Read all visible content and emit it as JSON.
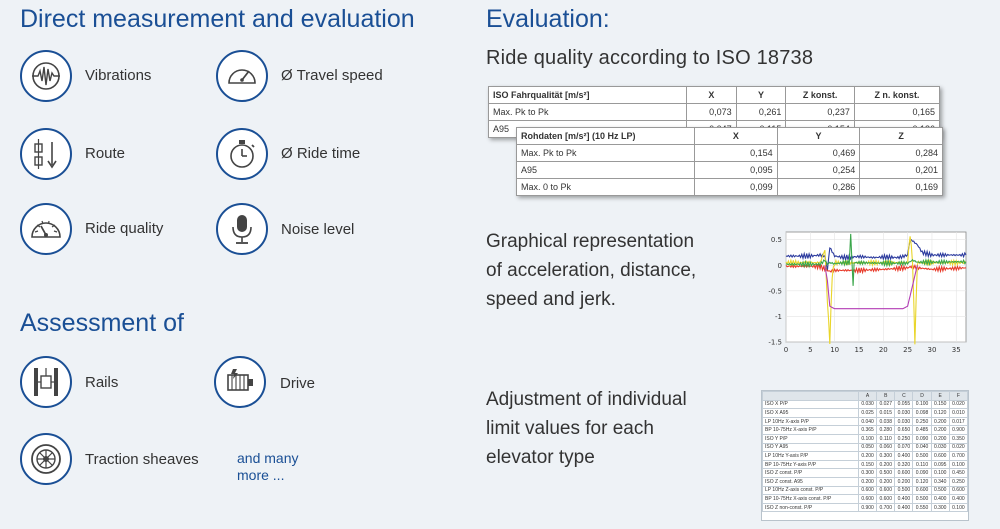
{
  "left": {
    "heading": "Direct measurement and evaluation",
    "measurements": [
      {
        "label": "Vibrations",
        "icon": "vibration-icon"
      },
      {
        "label": "Ø Travel speed",
        "icon": "speedometer-icon"
      },
      {
        "label": "Route",
        "icon": "route-icon"
      },
      {
        "label": "Ø Ride time",
        "icon": "stopwatch-icon"
      },
      {
        "label": "Ride quality",
        "icon": "gauge-icon"
      },
      {
        "label": "Noise level",
        "icon": "microphone-icon"
      }
    ],
    "assessment_heading": "Assessment of",
    "assessments": [
      {
        "label": "Rails",
        "icon": "rails-icon"
      },
      {
        "label": "Drive",
        "icon": "motor-icon"
      },
      {
        "label": "Traction sheaves",
        "icon": "sheave-icon"
      }
    ],
    "more_line1": "and many",
    "more_line2": "more ..."
  },
  "right": {
    "heading": "Evaluation:",
    "ride_quality_title": "Ride quality according to ISO 18738",
    "iso_table": {
      "headers": [
        "ISO Fahrqualität [m/s²]",
        "X",
        "Y",
        "Z konst.",
        "Z n. konst."
      ],
      "rows": [
        [
          "Max. Pk to Pk",
          "0,073",
          "0,261",
          "0,237",
          "0,165"
        ],
        [
          "A95",
          "0,047",
          "0,115",
          "0,154",
          "0,136"
        ]
      ]
    },
    "raw_table": {
      "headers": [
        "Rohdaten [m/s²] (10 Hz LP)",
        "X",
        "Y",
        "Z"
      ],
      "rows": [
        [
          "Max. Pk to Pk",
          "0,154",
          "0,469",
          "0,284"
        ],
        [
          "A95",
          "0,095",
          "0,254",
          "0,201"
        ],
        [
          "Max. 0 to Pk",
          "0,099",
          "0,286",
          "0,169"
        ]
      ]
    },
    "graph_text": [
      "Graphical representation",
      "of acceleration, distance,",
      "speed and jerk."
    ],
    "limits_text": [
      "Adjustment of individual",
      "limit values for each",
      "elevator type"
    ],
    "limits_table": {
      "headers": [
        "",
        "A",
        "B",
        "C",
        "D",
        "E",
        "F"
      ],
      "rows": [
        [
          "ISO X P/P",
          "0.030",
          "0.027",
          "0.055",
          "0.100",
          "0.150",
          "0.020"
        ],
        [
          "ISO X A95",
          "0.025",
          "0.015",
          "0.030",
          "0.098",
          "0.120",
          "0.010"
        ],
        [
          "LP 10Hz X-axis P/P",
          "0.040",
          "0.038",
          "0.030",
          "0.250",
          "0.200",
          "0.017"
        ],
        [
          "BP 10-75Hz X-axis P/P",
          "0.365",
          "0.280",
          "0.650",
          "0.485",
          "0.200",
          "0.900"
        ],
        [
          "ISO Y P/P",
          "0.100",
          "0.110",
          "0.250",
          "0.090",
          "0.200",
          "0.350"
        ],
        [
          "ISO Y A95",
          "0.050",
          "0.060",
          "0.070",
          "0.040",
          "0.030",
          "0.020"
        ],
        [
          "LP 10Hz Y-axis P/P",
          "0.200",
          "0.300",
          "0.400",
          "0.500",
          "0.600",
          "0.700"
        ],
        [
          "BP 10-75Hz Y-axis P/P",
          "0.150",
          "0.200",
          "0.320",
          "0.110",
          "0.095",
          "0.100"
        ],
        [
          "ISO Z const. P/P",
          "0.300",
          "0.500",
          "0.600",
          "0.090",
          "0.100",
          "0.450"
        ],
        [
          "ISO Z const. A95",
          "0.200",
          "0.200",
          "0.200",
          "0.120",
          "0.340",
          "0.250"
        ],
        [
          "LP 10Hz Z-axis const. P/P",
          "0.600",
          "0.600",
          "0.500",
          "0.600",
          "0.500",
          "0.600"
        ],
        [
          "BP 10-75Hz X-axis const. P/P",
          "0.600",
          "0.600",
          "0.400",
          "0.500",
          "0.400",
          "0.400"
        ],
        [
          "ISO Z non-const. P/P",
          "0.900",
          "0.700",
          "0.400",
          "0.550",
          "0.300",
          "0.100"
        ]
      ]
    }
  },
  "chart_data": {
    "type": "line",
    "xlim": [
      0,
      37
    ],
    "ylim": [
      -1.5,
      0.65
    ],
    "x_ticks": [
      0,
      5,
      10,
      15,
      20,
      25,
      30,
      35
    ],
    "y_ticks": [
      0.5,
      0,
      -0.5,
      -1,
      -1.5
    ],
    "x_tick_labels": [
      "0",
      "5",
      "10",
      "15",
      "20",
      "25",
      "30",
      "35"
    ],
    "y_tick_labels": [
      "0.5",
      "0",
      "-0.5",
      "-1",
      "-1.5"
    ],
    "grid": true,
    "series": [
      {
        "color": "#2b3a9e",
        "x": [
          0,
          5,
          7,
          8,
          8.5,
          9,
          10,
          12,
          15,
          18,
          20,
          23,
          24,
          25,
          25.5,
          26,
          27,
          28,
          30,
          33,
          37
        ],
        "y": [
          0.18,
          0.18,
          0.2,
          0.18,
          -0.1,
          0.35,
          0.18,
          0.15,
          0.17,
          0.15,
          0.16,
          0.15,
          0.17,
          0.2,
          0.5,
          0.48,
          0.4,
          0.25,
          0.2,
          0.2,
          0.2
        ]
      },
      {
        "color": "#e83a2a",
        "x": [
          0,
          7,
          8,
          9,
          10,
          15,
          20,
          25,
          26,
          27,
          30,
          37
        ],
        "y": [
          -0.02,
          -0.02,
          -0.08,
          -0.12,
          -0.1,
          -0.1,
          -0.08,
          -0.05,
          -0.02,
          -0.05,
          -0.08,
          -0.05
        ]
      },
      {
        "color": "#e9d52a",
        "x": [
          0,
          7,
          8,
          8.5,
          9,
          9.5,
          10,
          25,
          25.5,
          26,
          26.5,
          27,
          28,
          37
        ],
        "y": [
          0.05,
          0.05,
          0.3,
          -0.7,
          -1.5,
          -0.2,
          0.05,
          0.05,
          0.6,
          0.1,
          -1.5,
          0.05,
          0.05,
          0.05
        ]
      },
      {
        "color": "#3aa64a",
        "x": [
          0,
          7,
          8,
          8.5,
          9,
          10,
          12,
          13,
          13.3,
          13.8,
          14,
          15,
          20,
          25,
          26,
          27,
          30,
          37
        ],
        "y": [
          0.02,
          0.02,
          0.1,
          0.02,
          0.05,
          0.03,
          0.05,
          0.05,
          0.6,
          -0.4,
          0.05,
          0.05,
          0.04,
          0.04,
          0.1,
          0.06,
          0.06,
          0.07
        ]
      },
      {
        "color": "#b23db5",
        "x": [
          8,
          8.5,
          9,
          10,
          12,
          15,
          20,
          24,
          25,
          26,
          27
        ],
        "y": [
          0,
          -0.3,
          -0.8,
          -0.85,
          -0.85,
          -0.85,
          -0.85,
          -0.85,
          -0.8,
          -0.4,
          0
        ]
      }
    ]
  }
}
